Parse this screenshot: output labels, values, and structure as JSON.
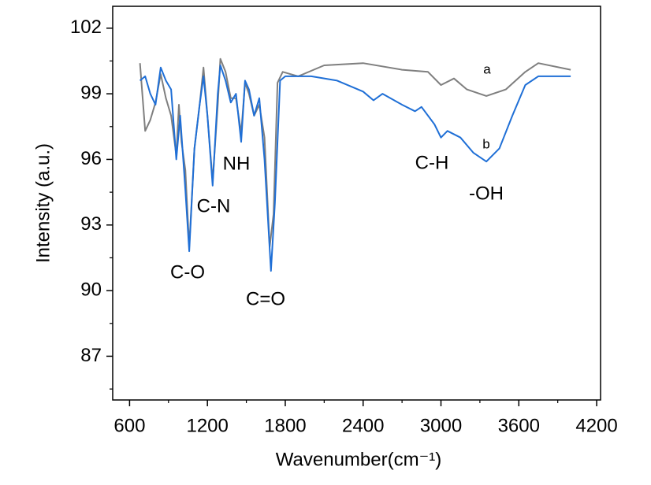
{
  "chart_data": {
    "type": "line",
    "x_label": "Wavenumber(cm⁻¹)",
    "y_label": "Intensity (a.u.)",
    "xlim": [
      470,
      4230
    ],
    "ylim": [
      85,
      103
    ],
    "xticks": [
      600,
      1200,
      1800,
      2400,
      3000,
      3600,
      4200
    ],
    "yticks": [
      87,
      90,
      93,
      96,
      99,
      102
    ],
    "series": [
      {
        "name": "a",
        "color": "#7f7f7f",
        "x": [
          680,
          720,
          760,
          800,
          840,
          880,
          920,
          960,
          980,
          1000,
          1030,
          1060,
          1100,
          1140,
          1170,
          1200,
          1240,
          1280,
          1300,
          1340,
          1380,
          1420,
          1460,
          1490,
          1520,
          1560,
          1600,
          1640,
          1680,
          1710,
          1740,
          1780,
          1900,
          2100,
          2400,
          2700,
          2900,
          3000,
          3100,
          3200,
          3350,
          3500,
          3650,
          3750,
          4000
        ],
        "values": [
          100.4,
          97.3,
          97.8,
          98.6,
          99.9,
          98.8,
          98.0,
          96.2,
          98.5,
          96.8,
          95.5,
          92.0,
          96.5,
          98.5,
          100.2,
          98.0,
          95.0,
          98.5,
          100.6,
          100.0,
          98.8,
          98.8,
          97.2,
          99.5,
          99.0,
          98.0,
          98.5,
          97.0,
          92.0,
          93.5,
          99.5,
          100.0,
          99.8,
          100.3,
          100.4,
          100.1,
          100.0,
          99.4,
          99.7,
          99.2,
          98.9,
          99.2,
          100.0,
          100.4,
          100.1
        ]
      },
      {
        "name": "b",
        "color": "#1f6fd6",
        "x": [
          680,
          720,
          760,
          800,
          840,
          880,
          920,
          960,
          990,
          1030,
          1060,
          1100,
          1140,
          1170,
          1200,
          1240,
          1280,
          1300,
          1340,
          1380,
          1420,
          1460,
          1490,
          1520,
          1560,
          1600,
          1640,
          1690,
          1720,
          1760,
          1800,
          2000,
          2200,
          2400,
          2480,
          2550,
          2700,
          2800,
          2850,
          2950,
          3000,
          3050,
          3150,
          3250,
          3350,
          3450,
          3550,
          3650,
          3750,
          4000
        ],
        "values": [
          99.6,
          99.8,
          99.0,
          98.5,
          100.2,
          99.6,
          99.2,
          96.0,
          98.0,
          94.6,
          91.8,
          96.5,
          98.5,
          99.8,
          98.0,
          94.8,
          99.0,
          100.3,
          99.6,
          98.6,
          99.0,
          96.8,
          99.6,
          99.2,
          98.0,
          98.8,
          96.0,
          90.9,
          94.0,
          99.6,
          99.8,
          99.8,
          99.6,
          99.1,
          98.7,
          99.0,
          98.5,
          98.2,
          98.4,
          97.6,
          97.0,
          97.3,
          97.0,
          96.3,
          95.9,
          96.5,
          98.0,
          99.4,
          99.8,
          99.8
        ]
      }
    ],
    "annotations": [
      "C-O",
      "C-N",
      "NH",
      "C=O",
      "C-H",
      "-OH"
    ]
  }
}
